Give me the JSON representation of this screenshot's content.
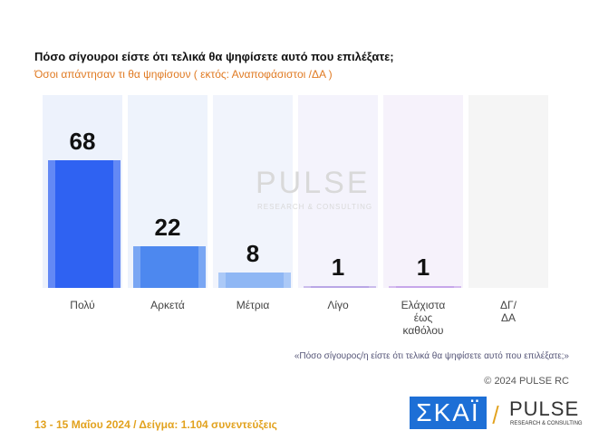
{
  "chart_data": {
    "type": "bar",
    "title": "Πόσο σίγουροι είστε ότι τελικά θα ψηφίσετε αυτό που επιλέξατε;",
    "subtitle": "Όσοι απάντησαν τι θα ψηφίσουν ( εκτός: Αναποφάσιστοι /ΔΑ )",
    "categories": [
      "Πολύ",
      "Αρκετά",
      "Μέτρια",
      "Λίγο",
      "Ελάχιστα\nέως\nκαθόλου",
      "ΔΓ/\nΔΑ"
    ],
    "values": [
      68,
      22,
      8,
      1,
      1,
      null
    ],
    "colors": [
      "#2f62f2",
      "#4d88ef",
      "#8fb7f4",
      "#b9a6e6",
      "#c7a6ea",
      "#cccccc"
    ],
    "column_colors": [
      "#edf2fc",
      "#eef3fc",
      "#f1f4fc",
      "#f4f3fc",
      "#f6f2fb",
      "#f5f5f5"
    ],
    "note": "«Πόσο σίγουρος/η είστε ότι τελικά θα ψηφίσετε αυτό που επιλέξατε;»",
    "copyright": "© 2024 PULSE RC",
    "watermark": "PULSE",
    "watermark_sub": "RESEARCH & CONSULTING"
  },
  "footer": {
    "survey": "13 - 15  Μαΐου 2024  /  Δείγμα:  1.104 συνεντεύξεις",
    "logo_skai": "ΣΚΑΪ",
    "logo_pulse": "PULSE",
    "logo_pulse_sub": "RESEARCH & CONSULTING"
  }
}
